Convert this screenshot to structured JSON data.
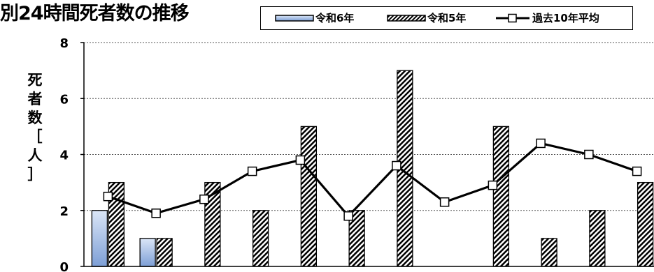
{
  "title": "別24時間死者数の推移",
  "legend": {
    "r6": "令和6年",
    "r5": "令和5年",
    "avg": "過去10年平均"
  },
  "colors": {
    "r6_top": "#dbe6f7",
    "r6_bottom": "#7d9fd6",
    "hatch": "#000000",
    "line": "#000000",
    "grid": "#555555"
  },
  "chart_data": {
    "type": "bar",
    "title": "別24時間死者数の推移",
    "xlabel": "",
    "ylabel": "死者数［人］",
    "ylim": [
      0,
      8
    ],
    "yticks": [
      "0",
      "2",
      "4",
      "6",
      "8"
    ],
    "grid": true,
    "legend_position": "top",
    "categories": [
      "",
      "",
      "",
      "",
      "",
      "",
      "",
      "",
      "",
      "",
      "",
      "",
      ""
    ],
    "series": [
      {
        "name": "令和6年",
        "type": "bar",
        "values": [
          2,
          1,
          null,
          null,
          null,
          null,
          null,
          null,
          null,
          null,
          null,
          null,
          null
        ]
      },
      {
        "name": "令和5年",
        "type": "bar",
        "values": [
          3,
          1,
          3,
          2,
          5,
          2,
          7,
          0,
          5,
          1,
          2,
          3,
          null
        ]
      },
      {
        "name": "過去10年平均",
        "type": "line",
        "values": [
          2.5,
          1.9,
          2.4,
          3.4,
          3.8,
          1.8,
          3.6,
          2.3,
          2.9,
          4.4,
          4.0,
          3.4,
          null
        ]
      }
    ]
  }
}
